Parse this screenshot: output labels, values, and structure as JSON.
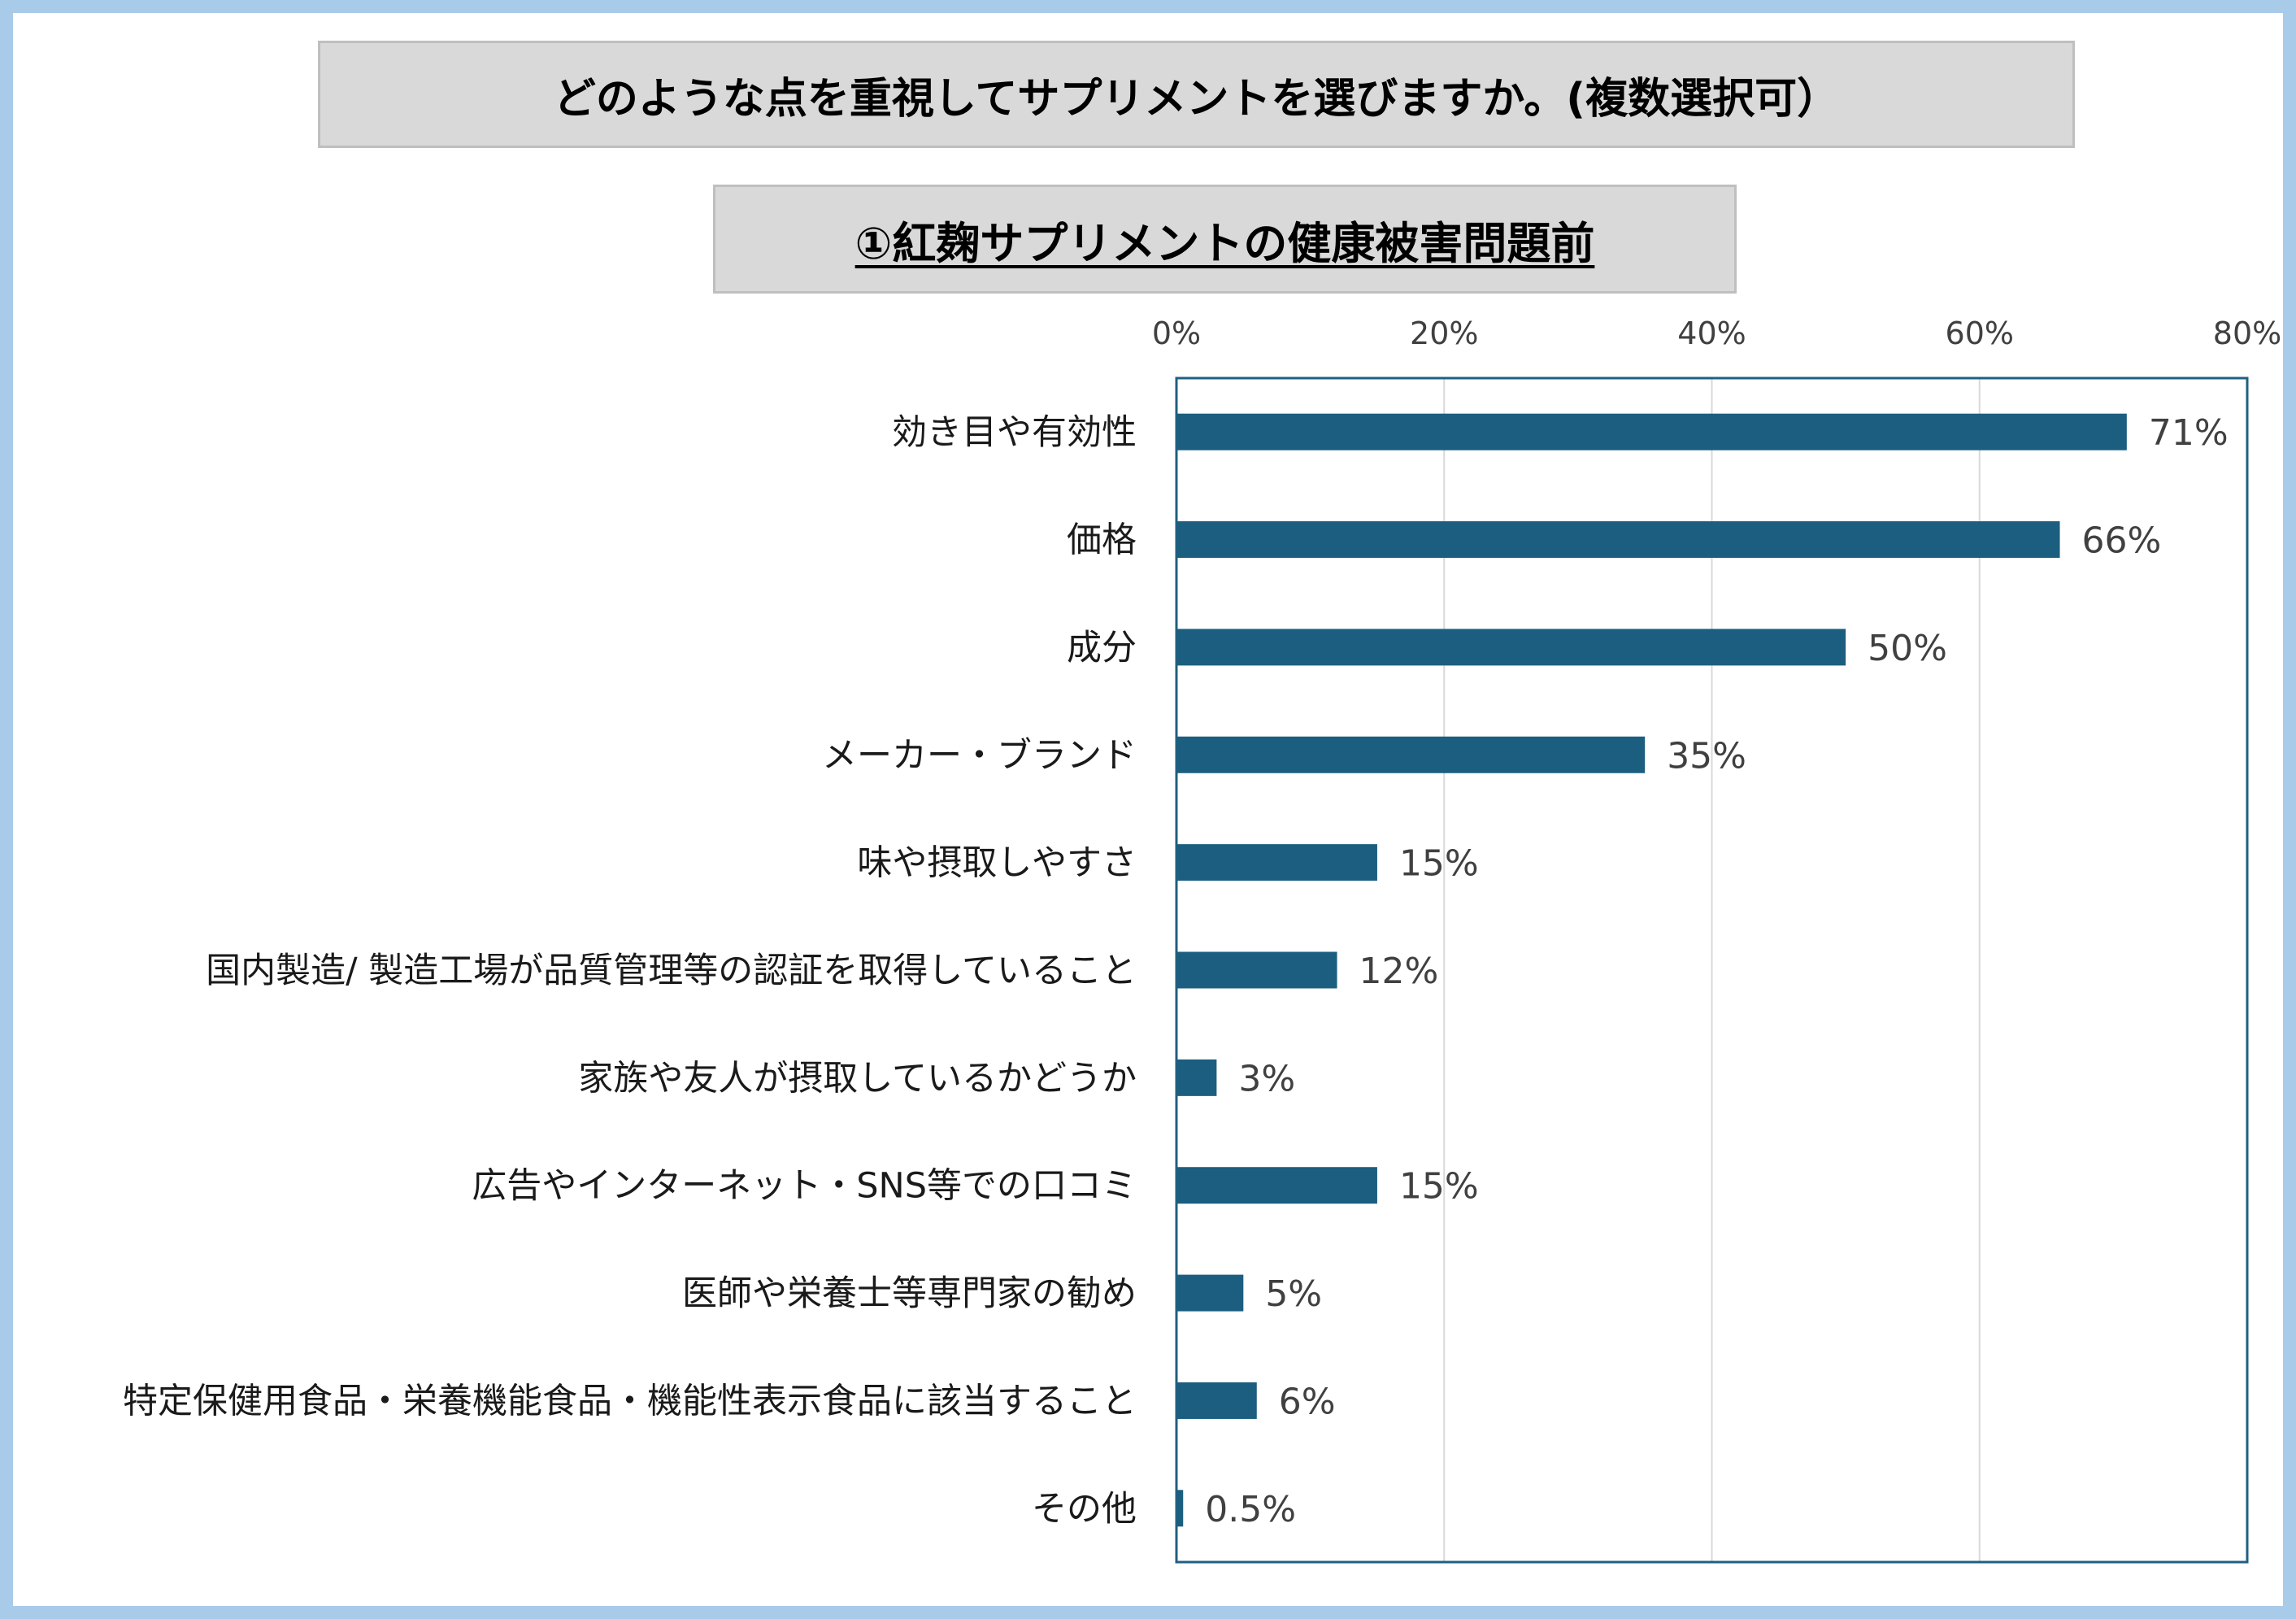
{
  "chart_data": {
    "type": "bar",
    "orientation": "horizontal",
    "title": "どのような点を重視してサプリメントを選びますか。(複数選択可）",
    "subtitle": "①紅麹サプリメントの健康被害問題前",
    "categories": [
      "効き目や有効性",
      "価格",
      "成分",
      "メーカー・ブランド",
      "味や摂取しやすさ",
      "国内製造/ 製造工場が品質管理等の認証を取得していること",
      "家族や友人が摂取しているかどうか",
      "広告やインターネット・SNS等での口コミ",
      "医師や栄養士等専門家の勧め",
      "特定保健用食品・栄養機能食品・機能性表示食品に該当すること",
      "その他"
    ],
    "values": [
      71,
      66,
      50,
      35,
      15,
      12,
      3,
      15,
      5,
      6,
      0.5
    ],
    "value_labels": [
      "71%",
      "66%",
      "50%",
      "35%",
      "15%",
      "12%",
      "3%",
      "15%",
      "5%",
      "6%",
      "0.5%"
    ],
    "x_tick_values": [
      0,
      20,
      40,
      60,
      80
    ],
    "x_tick_labels": [
      "0%",
      "20%",
      "40%",
      "60%",
      "80%"
    ],
    "xlim": [
      0,
      80
    ],
    "grid": true,
    "colors": {
      "bar": "#1b5e7f",
      "plot_border": "#1f6080",
      "gridline": "#d9d9d9",
      "frame": "#a9cbea",
      "title_box": "#d9d9d9"
    }
  }
}
